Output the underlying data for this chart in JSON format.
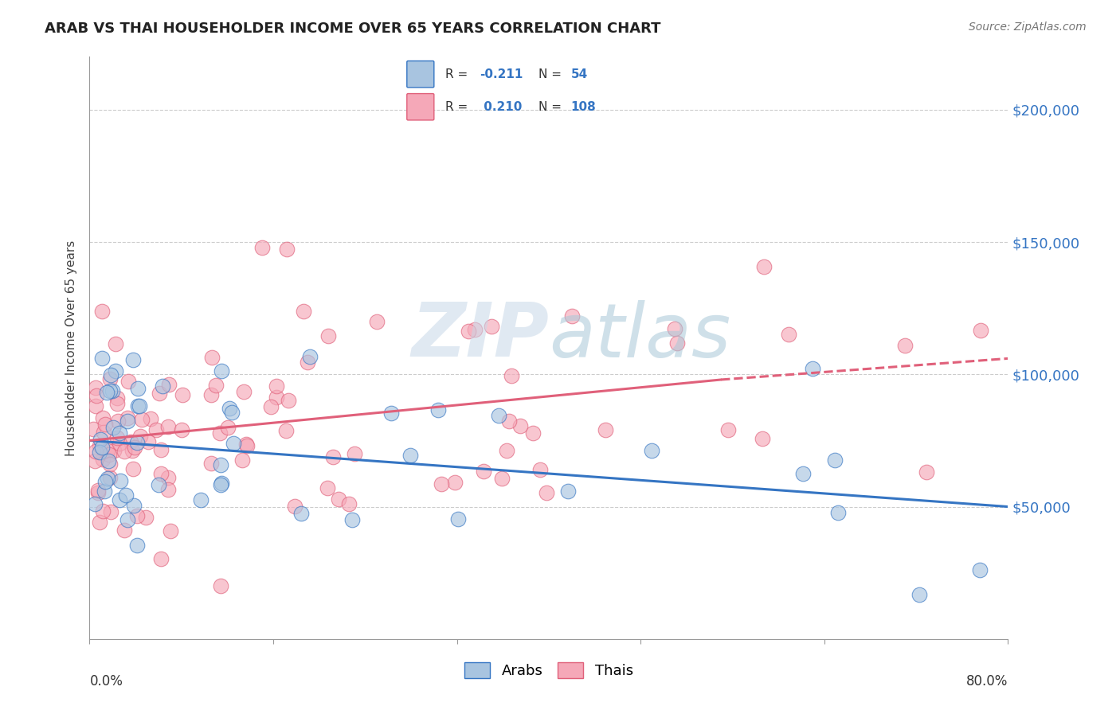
{
  "title": "ARAB VS THAI HOUSEHOLDER INCOME OVER 65 YEARS CORRELATION CHART",
  "source": "Source: ZipAtlas.com",
  "ylabel": "Householder Income Over 65 years",
  "xlim": [
    0.0,
    80.0
  ],
  "ylim": [
    0,
    220000
  ],
  "yticks": [
    50000,
    100000,
    150000,
    200000
  ],
  "ytick_labels": [
    "$50,000",
    "$100,000",
    "$150,000",
    "$200,000"
  ],
  "arab_color": "#a8c4e0",
  "thai_color": "#f5a8b8",
  "arab_line_color": "#3575c3",
  "thai_line_color": "#e0607a",
  "arab_R": -0.211,
  "arab_N": 54,
  "thai_R": 0.21,
  "thai_N": 108,
  "legend_label_arab": "Arabs",
  "legend_label_thai": "Thais",
  "watermark": "ZIPatlas",
  "arab_trend_x0": 0,
  "arab_trend_x1": 80,
  "arab_trend_y0": 75000,
  "arab_trend_y1": 50000,
  "thai_trend_x0": 0,
  "thai_trend_x1": 55,
  "thai_trend_x1_dash": 80,
  "thai_trend_y0": 75000,
  "thai_trend_y1": 98000,
  "thai_trend_y1_dash": 106000,
  "grid_color": "#cccccc",
  "title_fontsize": 13,
  "source_fontsize": 10,
  "axis_label_fontsize": 11,
  "ytick_fontsize": 13,
  "scatter_size": 180,
  "scatter_alpha": 0.65,
  "scatter_linewidth": 0.8
}
